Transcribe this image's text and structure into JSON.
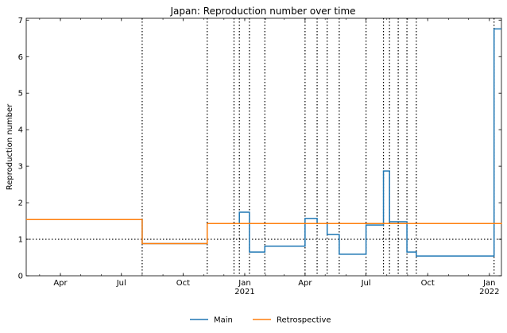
{
  "chart_data": {
    "type": "line",
    "title": "Japan: Reproduction number over time",
    "xlabel": "",
    "ylabel": "Reproduction number",
    "x_axis": {
      "type": "date",
      "range": [
        "2020-02-10",
        "2022-01-19"
      ],
      "ticks": [
        {
          "date": "2020-04-01",
          "label": "Apr",
          "sublabel": ""
        },
        {
          "date": "2020-07-01",
          "label": "Jul",
          "sublabel": ""
        },
        {
          "date": "2020-10-01",
          "label": "Oct",
          "sublabel": ""
        },
        {
          "date": "2021-01-01",
          "label": "Jan",
          "sublabel": "2021"
        },
        {
          "date": "2021-04-01",
          "label": "Apr",
          "sublabel": ""
        },
        {
          "date": "2021-07-01",
          "label": "Jul",
          "sublabel": ""
        },
        {
          "date": "2021-10-01",
          "label": "Oct",
          "sublabel": ""
        },
        {
          "date": "2022-01-01",
          "label": "Jan",
          "sublabel": "2022"
        }
      ]
    },
    "y_axis": {
      "range": [
        0,
        7.05
      ],
      "ticks": [
        0,
        1,
        2,
        3,
        4,
        5,
        6,
        7
      ]
    },
    "grid": false,
    "reference_line": {
      "y": 1,
      "style": "dotted"
    },
    "changepoints": [
      "2020-08-01",
      "2020-11-06",
      "2020-12-16",
      "2020-12-24",
      "2021-01-08",
      "2021-01-31",
      "2021-04-01",
      "2021-04-19",
      "2021-05-04",
      "2021-05-22",
      "2021-07-01",
      "2021-07-27",
      "2021-08-05",
      "2021-08-18",
      "2021-08-31",
      "2021-09-14",
      "2022-01-08"
    ],
    "series": [
      {
        "name": "Main",
        "color": "#1f77b4",
        "steps": [
          {
            "x": "2020-02-10",
            "y": 1.54
          },
          {
            "x": "2020-08-01",
            "y": 0.88
          },
          {
            "x": "2020-11-06",
            "y": 1.43
          },
          {
            "x": "2020-12-24",
            "y": 1.74
          },
          {
            "x": "2021-01-08",
            "y": 0.65
          },
          {
            "x": "2021-01-31",
            "y": 0.81
          },
          {
            "x": "2021-04-01",
            "y": 1.57
          },
          {
            "x": "2021-04-19",
            "y": 1.43
          },
          {
            "x": "2021-05-04",
            "y": 1.13
          },
          {
            "x": "2021-05-22",
            "y": 0.59
          },
          {
            "x": "2021-07-01",
            "y": 1.39
          },
          {
            "x": "2021-07-27",
            "y": 2.87
          },
          {
            "x": "2021-08-05",
            "y": 1.48
          },
          {
            "x": "2021-08-31",
            "y": 0.65
          },
          {
            "x": "2021-09-14",
            "y": 0.54
          },
          {
            "x": "2022-01-08",
            "y": 6.76
          },
          {
            "x": "2022-01-19",
            "y": 6.76
          }
        ]
      },
      {
        "name": "Retrospective",
        "color": "#ff7f0e",
        "steps": [
          {
            "x": "2020-02-10",
            "y": 1.54
          },
          {
            "x": "2020-08-01",
            "y": 0.88
          },
          {
            "x": "2020-11-06",
            "y": 1.43
          },
          {
            "x": "2022-01-19",
            "y": 1.45
          }
        ]
      }
    ],
    "legend": {
      "position": "bottom-center",
      "entries": [
        "Main",
        "Retrospective"
      ]
    }
  }
}
